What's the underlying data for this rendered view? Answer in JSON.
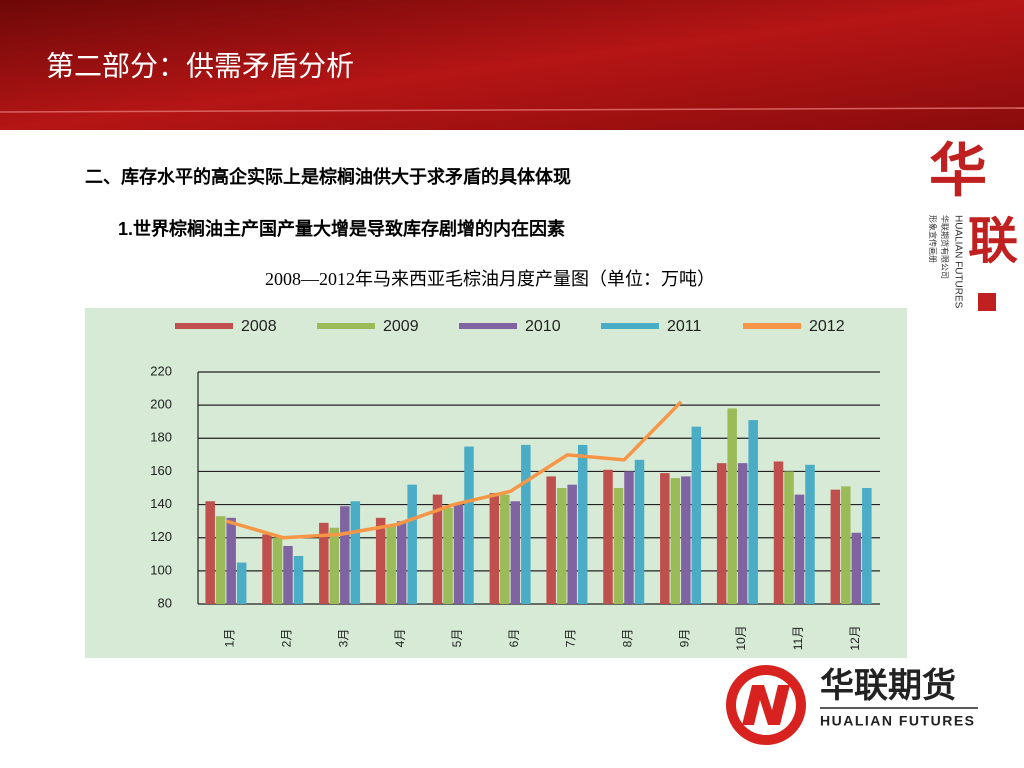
{
  "header": {
    "title": "第二部分：供需矛盾分析"
  },
  "body": {
    "heading": "二、库存水平的高企实际上是棕榈油供大于求矛盾的具体体现",
    "subheading": "1.世界棕榈油主产国产量大增是导致库存剧增的内在因素"
  },
  "side_logo": {
    "mark1": "华",
    "mark2": "联",
    "name_en": "HUALIAN FUTURES",
    "name_cn": "华联期货有限公司",
    "note": "形象宣传画册"
  },
  "logo": {
    "name_cn": "华联期货",
    "name_en": "HUALIAN FUTURES"
  },
  "chart_data": {
    "type": "bar",
    "title": "2008—2012年马来西亚毛棕油月度产量图（单位：万吨）",
    "categories": [
      "1月",
      "2月",
      "3月",
      "4月",
      "5月",
      "6月",
      "7月",
      "8月",
      "9月",
      "10月",
      "11月",
      "12月"
    ],
    "series": [
      {
        "name": "2008",
        "color": "#c0504d",
        "type": "bar",
        "values": [
          142,
          122,
          129,
          132,
          146,
          147,
          157,
          161,
          159,
          165,
          166,
          149
        ]
      },
      {
        "name": "2009",
        "color": "#9bbb59",
        "type": "bar",
        "values": [
          133,
          120,
          126,
          128,
          138,
          146,
          150,
          150,
          156,
          198,
          160,
          151
        ]
      },
      {
        "name": "2010",
        "color": "#8064a2",
        "type": "bar",
        "values": [
          132,
          115,
          139,
          130,
          140,
          142,
          152,
          160,
          157,
          165,
          146,
          123
        ]
      },
      {
        "name": "2011",
        "color": "#4bacc6",
        "type": "bar",
        "values": [
          105,
          109,
          142,
          152,
          175,
          176,
          176,
          167,
          187,
          191,
          164,
          150
        ]
      },
      {
        "name": "2012",
        "color": "#f79646",
        "type": "line",
        "values": [
          130,
          120,
          122,
          128,
          140,
          148,
          170,
          167,
          202,
          null,
          null,
          null
        ]
      }
    ],
    "ylim": [
      80,
      220
    ],
    "yticks": [
      80,
      100,
      120,
      140,
      160,
      180,
      200,
      220
    ],
    "grid": true,
    "legend": "top"
  }
}
